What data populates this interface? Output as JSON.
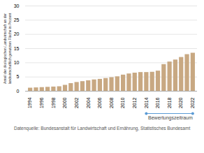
{
  "chart_data": {
    "type": "bar",
    "x": [
      1994,
      1995,
      1996,
      1997,
      1998,
      1999,
      2000,
      2001,
      2002,
      2003,
      2004,
      2005,
      2006,
      2007,
      2008,
      2009,
      2010,
      2011,
      2012,
      2013,
      2014,
      2015,
      2016,
      2017,
      2018,
      2019,
      2020,
      2021,
      2022
    ],
    "values": [
      1.1,
      1.2,
      1.3,
      1.4,
      1.5,
      1.6,
      2.1,
      2.7,
      3.1,
      3.4,
      3.7,
      4.0,
      4.2,
      4.5,
      4.8,
      5.1,
      5.7,
      6.1,
      6.4,
      6.6,
      6.6,
      6.7,
      7.1,
      9.4,
      10.3,
      11.0,
      11.9,
      12.9,
      13.4
    ],
    "color": "#c8a882",
    "y_label": "Anteil der ökologischen Landwirtschaft an der\nlandwirtschaftlich genutzten Fläche in Prozent",
    "xlim": [
      1993.2,
      2022.8
    ],
    "xticks": [
      1994,
      1996,
      1998,
      2000,
      2002,
      2004,
      2006,
      2008,
      2010,
      2012,
      2014,
      2016,
      2018,
      2020,
      2022
    ],
    "ylim": [
      0,
      30
    ],
    "yticks": [
      0,
      5,
      10,
      15,
      20,
      25,
      30
    ],
    "grid": true,
    "annotations": [
      {
        "text": "Bewertungszeitraum",
        "x": [
          2014,
          2022
        ],
        "color": "#5b9bd5"
      }
    ],
    "caption": "Datenquelle: Bundesanstalt für Landwirtschaft und Ernährung, Statistisches Bundesamt"
  }
}
